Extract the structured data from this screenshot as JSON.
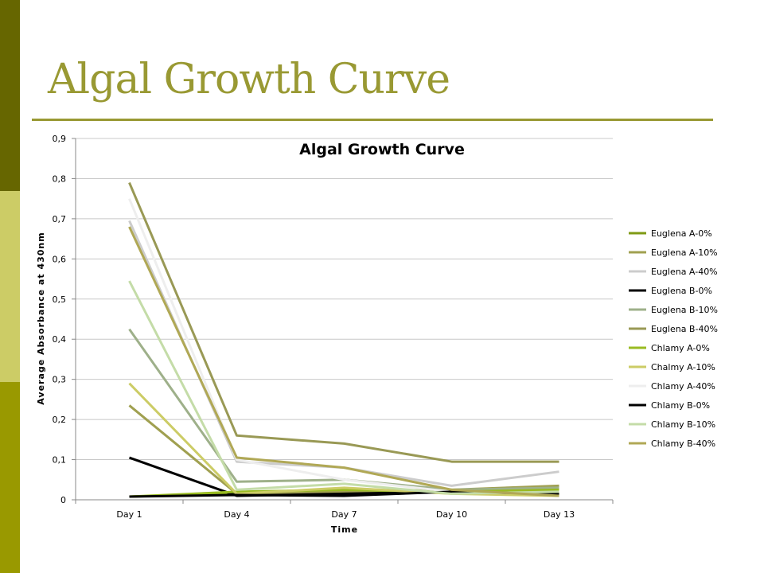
{
  "slide": {
    "title": "Algal Growth Curve"
  },
  "colors": {
    "sidebar": [
      "#666600",
      "#cccc66",
      "#999900"
    ],
    "title": "#999933"
  },
  "chart_data": {
    "type": "line",
    "title": "Algal Growth Curve",
    "xlabel": "Time",
    "ylabel": "Average Absorbance at 430nm",
    "categories": [
      "Day 1",
      "Day 4",
      "Day 7",
      "Day 10",
      "Day 13"
    ],
    "ylim": [
      0,
      0.9
    ],
    "yticks": [
      "0",
      "0,1",
      "0,2",
      "0,3",
      "0,4",
      "0,5",
      "0,6",
      "0,7",
      "0,8",
      "0,9"
    ],
    "grid": true,
    "legend_position": "right",
    "series": [
      {
        "name": "Euglena A-0%",
        "color": "#7f9a14",
        "values": [
          0.008,
          0.015,
          0.015,
          0.02,
          0.03
        ]
      },
      {
        "name": "Euglena A-10%",
        "color": "#a0a050",
        "values": [
          0.235,
          0.015,
          0.02,
          0.025,
          0.035
        ]
      },
      {
        "name": "Euglena A-40%",
        "color": "#cccccc",
        "values": [
          0.695,
          0.095,
          0.08,
          0.035,
          0.07
        ]
      },
      {
        "name": "Euglena B-0%",
        "color": "#000000",
        "values": [
          0.105,
          0.01,
          0.015,
          0.02,
          0.02
        ]
      },
      {
        "name": "Euglena B-10%",
        "color": "#9eb08a",
        "values": [
          0.425,
          0.045,
          0.05,
          0.025,
          0.03
        ]
      },
      {
        "name": "Euglena B-40%",
        "color": "#999955",
        "values": [
          0.79,
          0.16,
          0.14,
          0.095,
          0.095
        ]
      },
      {
        "name": "Chlamy A-0%",
        "color": "#99bb22",
        "values": [
          0.008,
          0.02,
          0.025,
          0.02,
          0.025
        ]
      },
      {
        "name": "Chalmy A-10%",
        "color": "#cccc66",
        "values": [
          0.29,
          0.015,
          0.03,
          0.015,
          0.01
        ]
      },
      {
        "name": "Chlamy A-40%",
        "color": "#eeeeee",
        "values": [
          0.75,
          0.1,
          0.05,
          0.02,
          0.015
        ]
      },
      {
        "name": "Chlamy B-0%",
        "color": "#000000",
        "values": [
          0.008,
          0.012,
          0.01,
          0.02,
          0.015
        ]
      },
      {
        "name": "Chlamy B-10%",
        "color": "#c4dca8",
        "values": [
          0.545,
          0.025,
          0.04,
          0.015,
          0.02
        ]
      },
      {
        "name": "Chlamy B-40%",
        "color": "#b0a855",
        "values": [
          0.68,
          0.105,
          0.08,
          0.025,
          0.01
        ]
      }
    ]
  }
}
